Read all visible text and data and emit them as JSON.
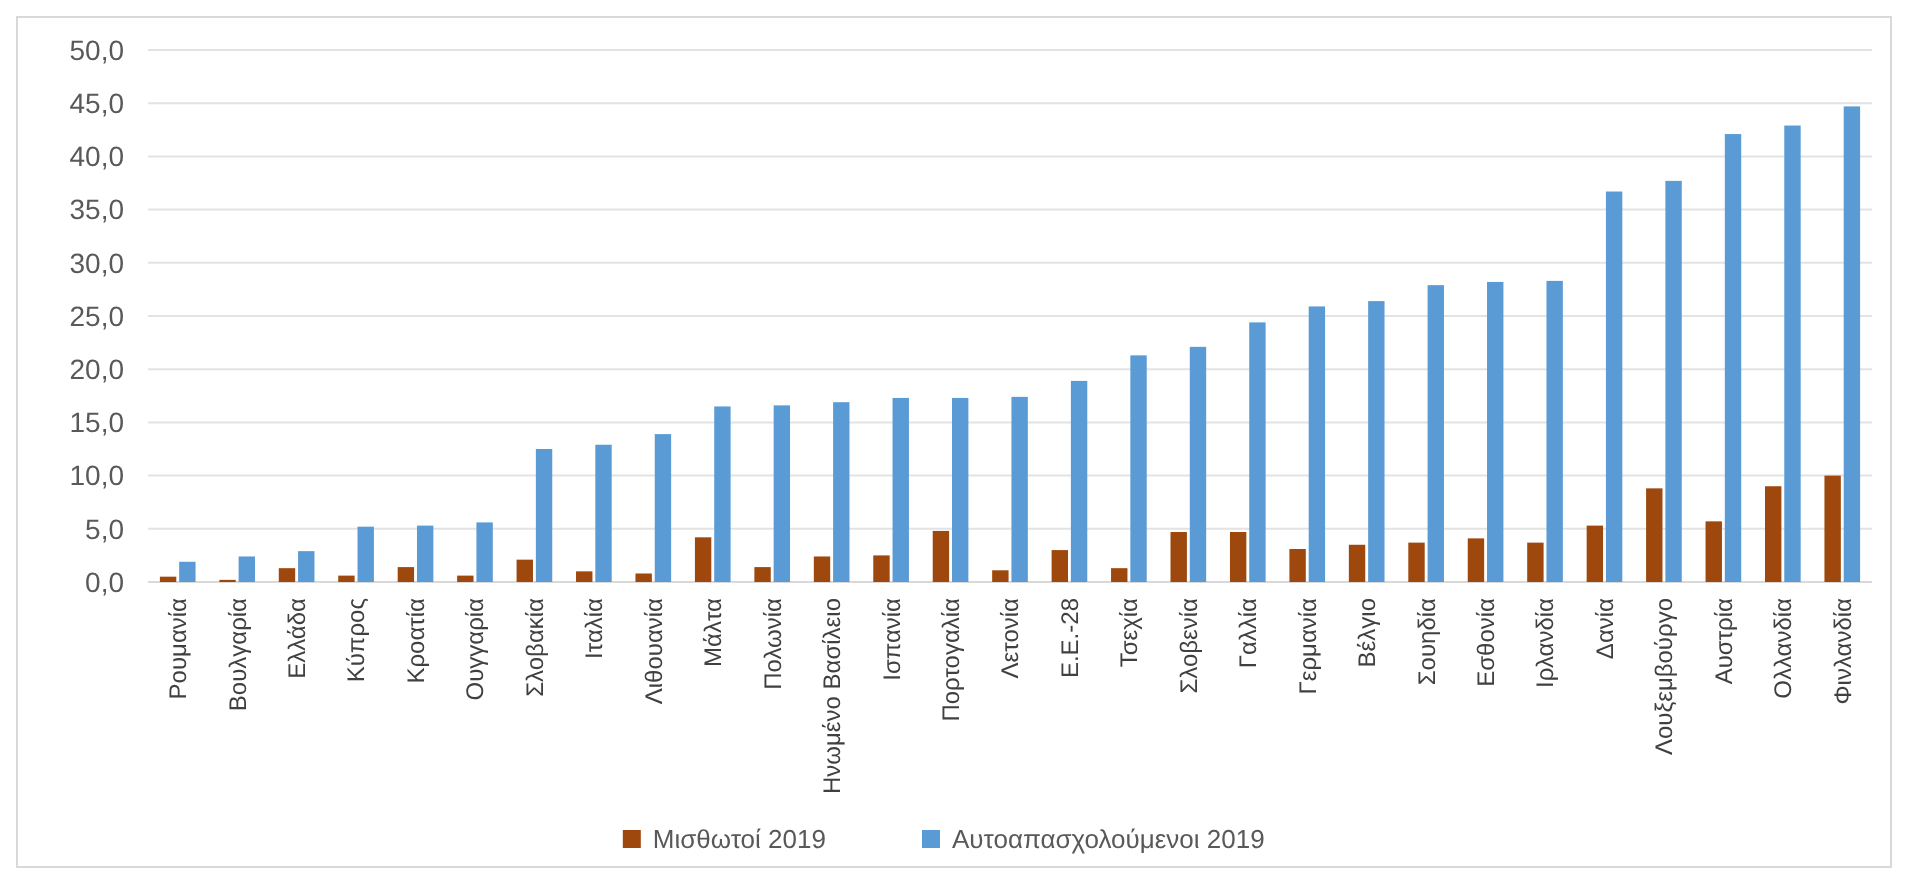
{
  "chart_data": {
    "type": "bar",
    "categories": [
      "Ρουμανία",
      "Βουλγαρία",
      "Ελλάδα",
      "Κύπρος",
      "Κροατία",
      "Ουγγαρία",
      "Σλοβακία",
      "Ιταλία",
      "Λιθουανία",
      "Μάλτα",
      "Πολωνία",
      "Ηνωμένο Βασίλειο",
      "Ισπανία",
      "Πορτογαλία",
      "Λετονία",
      "Ε.Ε.-28",
      "Τσεχία",
      "Σλοβενία",
      "Γαλλία",
      "Γερμανία",
      "Βέλγιο",
      "Σουηδία",
      "Εσθονία",
      "Ιρλανδία",
      "Δανία",
      "Λουξεμβούργο",
      "Αυστρία",
      "Ολλανδία",
      "Φινλανδία"
    ],
    "series": [
      {
        "name": "Μισθωτοί 2019",
        "color": "#9e480e",
        "values": [
          0.5,
          0.2,
          1.3,
          0.6,
          1.4,
          0.6,
          2.1,
          1.0,
          0.8,
          4.2,
          1.4,
          2.4,
          2.5,
          4.8,
          1.1,
          3.0,
          1.3,
          4.7,
          4.7,
          3.1,
          3.5,
          3.7,
          4.1,
          3.7,
          5.3,
          8.8,
          5.7,
          9.0,
          10.0
        ]
      },
      {
        "name": "Αυτοαπασχολούμενοι 2019",
        "color": "#5b9bd5",
        "values": [
          1.9,
          2.4,
          2.9,
          5.2,
          5.3,
          5.6,
          12.5,
          12.9,
          13.9,
          16.5,
          16.6,
          16.9,
          17.3,
          17.3,
          17.4,
          18.9,
          21.3,
          22.1,
          24.4,
          25.9,
          26.4,
          27.9,
          28.2,
          28.3,
          36.7,
          37.7,
          42.1,
          42.9,
          44.7
        ]
      }
    ],
    "ylim": [
      0,
      50
    ],
    "yticks": [
      {
        "value": 0,
        "label": "0,0"
      },
      {
        "value": 5,
        "label": "5,0"
      },
      {
        "value": 10,
        "label": "10,0"
      },
      {
        "value": 15,
        "label": "15,0"
      },
      {
        "value": 20,
        "label": "20,0"
      },
      {
        "value": 25,
        "label": "25,0"
      },
      {
        "value": 30,
        "label": "30,0"
      },
      {
        "value": 35,
        "label": "35,0"
      },
      {
        "value": 40,
        "label": "40,0"
      },
      {
        "value": 45,
        "label": "45,0"
      },
      {
        "value": 50,
        "label": "50,0"
      }
    ],
    "grid": "y",
    "legend": "bottom"
  }
}
